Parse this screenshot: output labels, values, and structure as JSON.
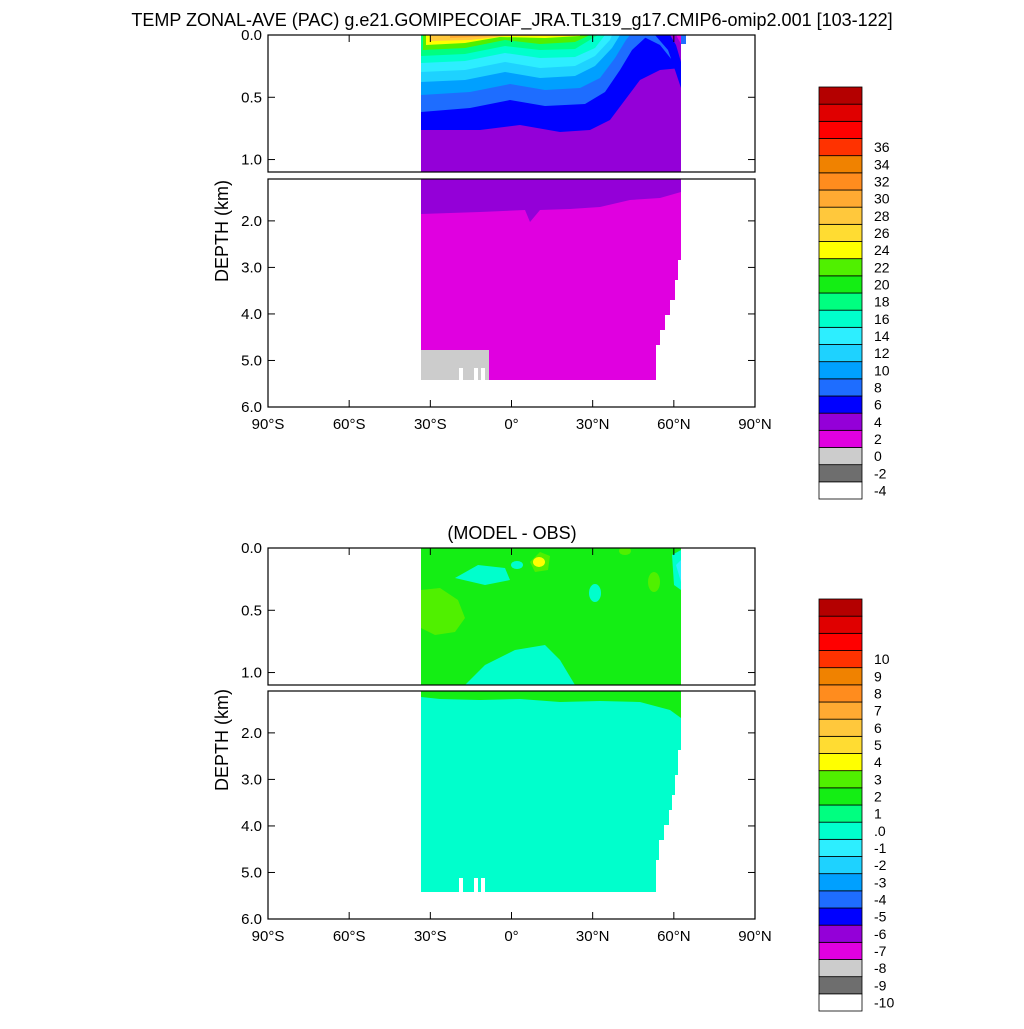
{
  "title": "TEMP ZONAL-AVE (PAC) g.e21.GOMIPECOIAF_JRA.TL319_g17.CMIP6-omip2.001 [103-122]",
  "chart_data": [
    {
      "type": "heatmap",
      "title": "",
      "ylabel": "DEPTH (km)",
      "xlabel": "",
      "x_ticks": [
        "90°S",
        "60°S",
        "30°S",
        "0°",
        "30°N",
        "60°N",
        "90°N"
      ],
      "y_ticks_upper": [
        "0.0",
        "0.5",
        "1.0"
      ],
      "y_ticks_lower": [
        "2.0",
        "3.0",
        "4.0",
        "5.0",
        "6.0"
      ],
      "xlim": [
        -90,
        90
      ],
      "ylim_km": [
        0,
        6
      ],
      "depth_break_km": 1.1,
      "colorbar": {
        "labels": [
          "-4",
          "-2",
          "0",
          "2",
          "4",
          "6",
          "8",
          "10",
          "12",
          "14",
          "16",
          "18",
          "20",
          "22",
          "24",
          "26",
          "28",
          "30",
          "32",
          "34",
          "36"
        ],
        "colors": [
          "#ffffff",
          "#6e6e6e",
          "#cccccc",
          "#e000e0",
          "#9400d8",
          "#0000ff",
          "#1e6dff",
          "#00a0ff",
          "#1ed2ff",
          "#2deeff",
          "#00ffcc",
          "#00ff80",
          "#14ee14",
          "#50f000",
          "#ffff00",
          "#ffdc32",
          "#ffc83c",
          "#ffaa32",
          "#ff8c1e",
          "#f08200",
          "#ff3200",
          "#ff0000",
          "#e00000",
          "#b40000"
        ]
      }
    },
    {
      "type": "heatmap",
      "title": "(MODEL - OBS)",
      "ylabel": "DEPTH (km)",
      "xlabel": "",
      "x_ticks": [
        "90°S",
        "60°S",
        "30°S",
        "0°",
        "30°N",
        "60°N",
        "90°N"
      ],
      "y_ticks_upper": [
        "0.0",
        "0.5",
        "1.0"
      ],
      "y_ticks_lower": [
        "2.0",
        "3.0",
        "4.0",
        "5.0",
        "6.0"
      ],
      "xlim": [
        -90,
        90
      ],
      "ylim_km": [
        0,
        6
      ],
      "depth_break_km": 1.1,
      "colorbar": {
        "labels": [
          "-10",
          "-9",
          "-8",
          "-7",
          "-6",
          "-5",
          "-4",
          "-3",
          "-2",
          "-1",
          ".0",
          "1",
          "2",
          "3",
          "4",
          "5",
          "6",
          "7",
          "8",
          "9",
          "10"
        ],
        "colors": [
          "#ffffff",
          "#6e6e6e",
          "#cccccc",
          "#e000e0",
          "#9400d8",
          "#0000ff",
          "#1e6dff",
          "#00a0ff",
          "#1ed2ff",
          "#2deeff",
          "#00ffcc",
          "#00ff80",
          "#14ee14",
          "#50f000",
          "#ffff00",
          "#ffdc32",
          "#ffc83c",
          "#ffaa32",
          "#ff8c1e",
          "#f08200",
          "#ff3200",
          "#ff0000",
          "#e00000",
          "#b40000"
        ]
      }
    }
  ]
}
